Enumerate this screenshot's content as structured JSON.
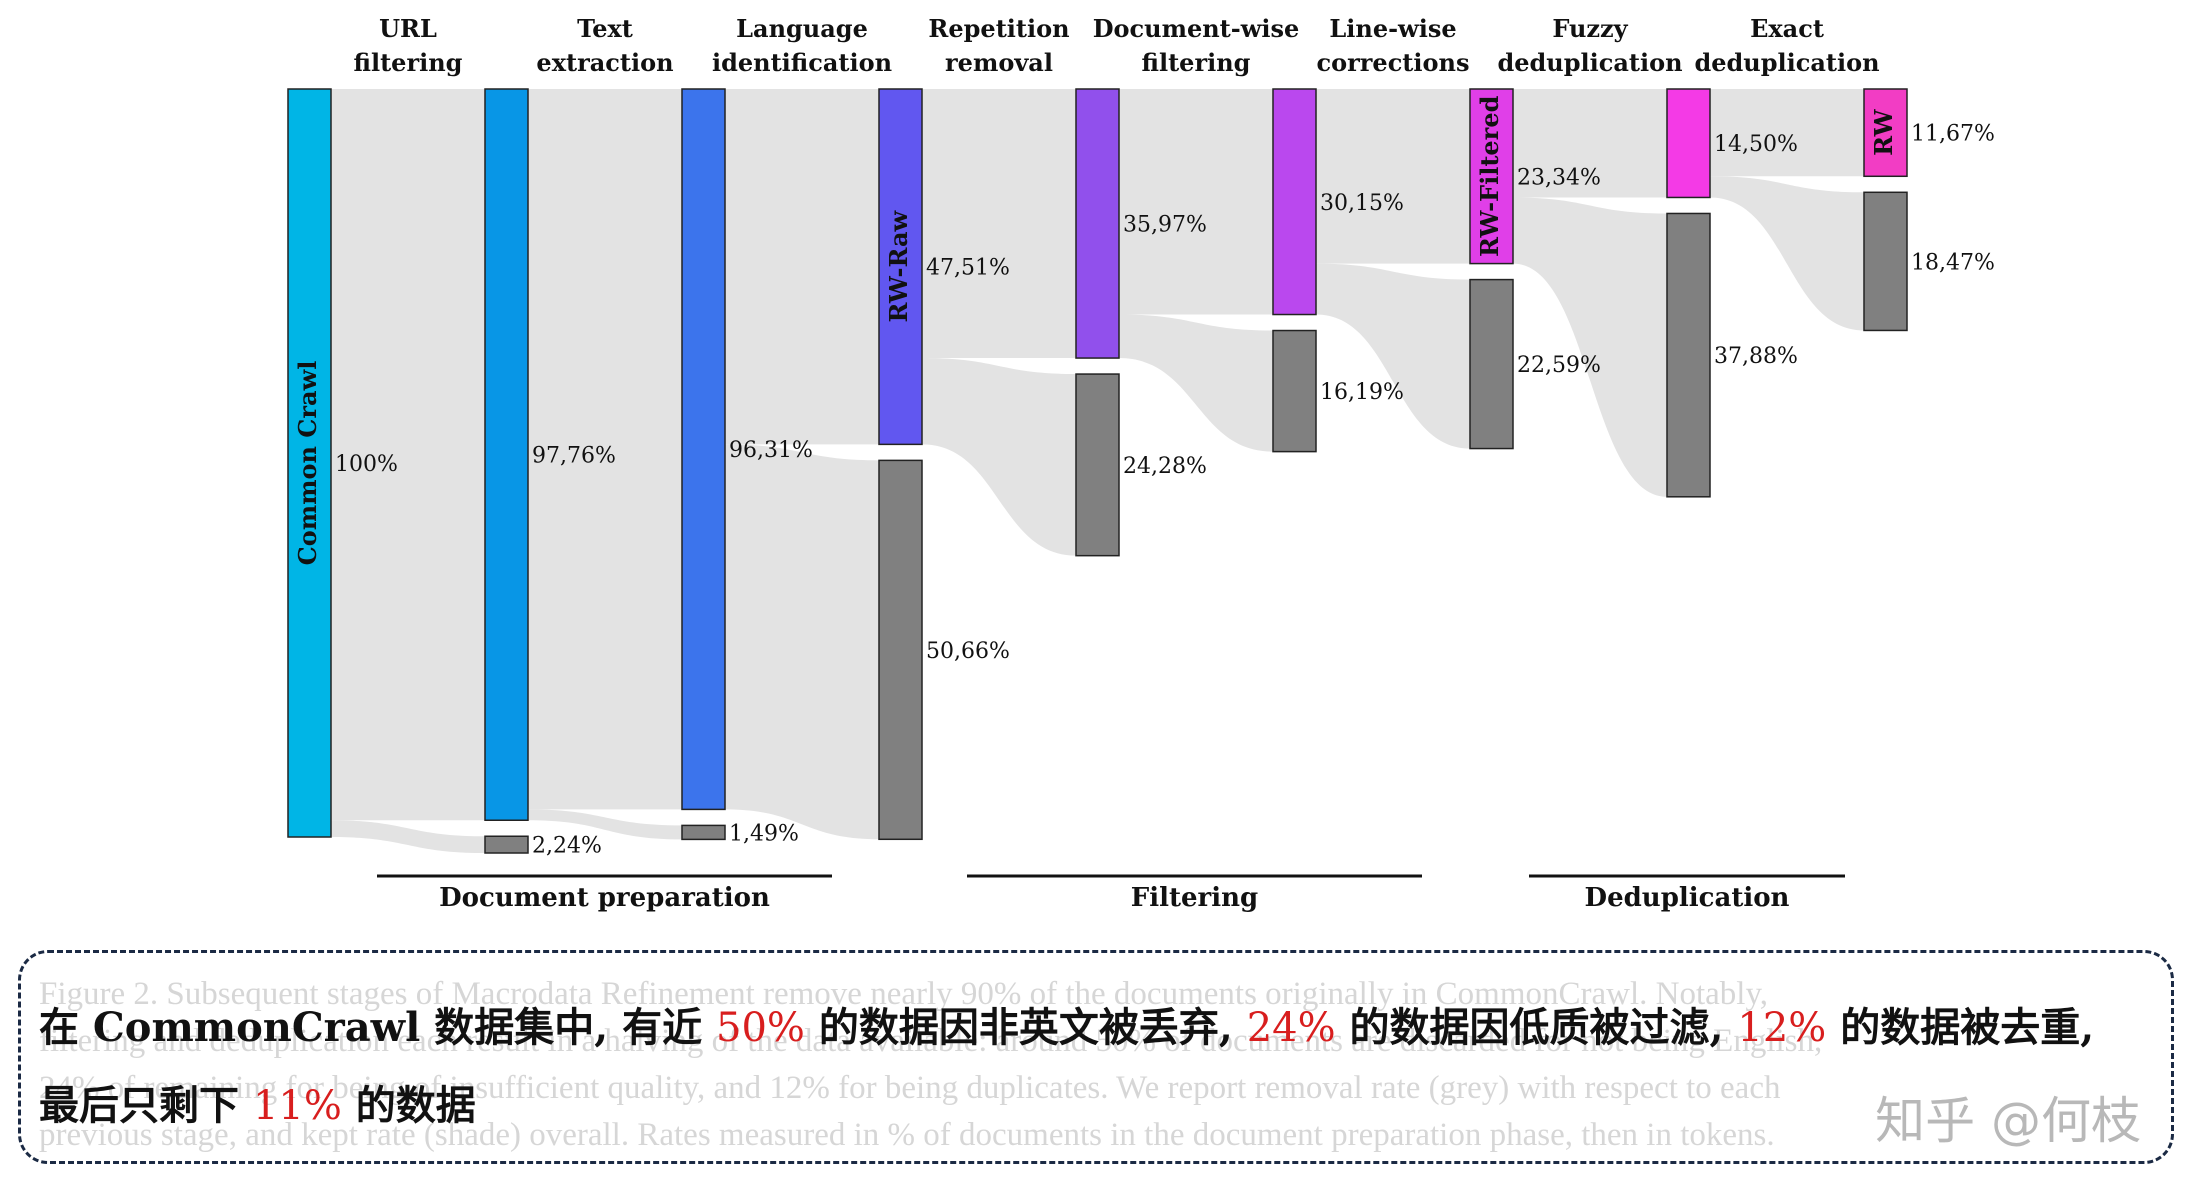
{
  "chart_data": {
    "type": "sankey",
    "stages": [
      {
        "label_line1": "URL",
        "label_line2": "filtering"
      },
      {
        "label_line1": "Text",
        "label_line2": "extraction"
      },
      {
        "label_line1": "Language",
        "label_line2": "identification"
      },
      {
        "label_line1": "Repetition",
        "label_line2": "removal"
      },
      {
        "label_line1": "Document-wise",
        "label_line2": "filtering"
      },
      {
        "label_line1": "Line-wise",
        "label_line2": "corrections"
      },
      {
        "label_line1": "Fuzzy",
        "label_line2": "deduplication"
      },
      {
        "label_line1": "Exact",
        "label_line2": "deduplication"
      }
    ],
    "columns": [
      {
        "kept": 100,
        "kept_label": "100%",
        "removed": null,
        "removed_label": "",
        "node_name": "Common Crawl",
        "color": "#00b5e6"
      },
      {
        "kept": 97.76,
        "kept_label": "97,76%",
        "removed": 2.24,
        "removed_label": "2,24%",
        "node_name": "",
        "color": "#0896e6"
      },
      {
        "kept": 96.31,
        "kept_label": "96,31%",
        "removed": 1.49,
        "removed_label": "1,49%",
        "node_name": "",
        "color": "#3c74ec"
      },
      {
        "kept": 47.51,
        "kept_label": "47,51%",
        "removed": 50.66,
        "removed_label": "50,66%",
        "node_name": "RW-Raw",
        "color": "#6157f0"
      },
      {
        "kept": 35.97,
        "kept_label": "35,97%",
        "removed": 24.28,
        "removed_label": "24,28%",
        "node_name": "",
        "color": "#9150ec"
      },
      {
        "kept": 30.15,
        "kept_label": "30,15%",
        "removed": 16.19,
        "removed_label": "16,19%",
        "node_name": "",
        "color": "#ba48ee"
      },
      {
        "kept": 23.34,
        "kept_label": "23,34%",
        "removed": 22.59,
        "removed_label": "22,59%",
        "node_name": "RW-Filtered",
        "color": "#e03fe8"
      },
      {
        "kept": 14.5,
        "kept_label": "14,50%",
        "removed": 37.88,
        "removed_label": "37,88%",
        "node_name": "",
        "color": "#f43ae6"
      },
      {
        "kept": 11.67,
        "kept_label": "11,67%",
        "removed": 18.47,
        "removed_label": "18,47%",
        "node_name": "RW",
        "color": "#f23dc4"
      }
    ],
    "removed_color": "#808080",
    "flow_color": "#e3e3e3",
    "groups": [
      {
        "label": "Document preparation"
      },
      {
        "label": "Filtering"
      },
      {
        "label": "Deduplication"
      }
    ]
  },
  "caption": {
    "faint_lines": [
      "Figure 2. Subsequent stages of Macrodata Refinement remove nearly 90% of the documents originally in CommonCrawl. Notably,",
      "filtering and deduplication each result in a halving of the data available: around 50% of documents are discarded for not being English,",
      "24% of remaining for being of insufficient quality, and 12% for being duplicates. We report removal rate (grey) with respect to each",
      "previous stage, and kept rate (shade) overall. Rates measured in % of documents in the document preparation phase, then in tokens."
    ],
    "annotation": {
      "p1": "在 CommonCrawl 数据集中, 有近 ",
      "r1": "50%",
      "p2": " 的数据因非英文被丢弃, ",
      "r2": "24%",
      "p3": " 的数据因低质被过滤, ",
      "r3": "12%",
      "p4": " 的数据被去重, 最后只剩下 ",
      "r4": "11%",
      "p5": " 的数据"
    }
  },
  "watermark": "知乎 @何枝"
}
